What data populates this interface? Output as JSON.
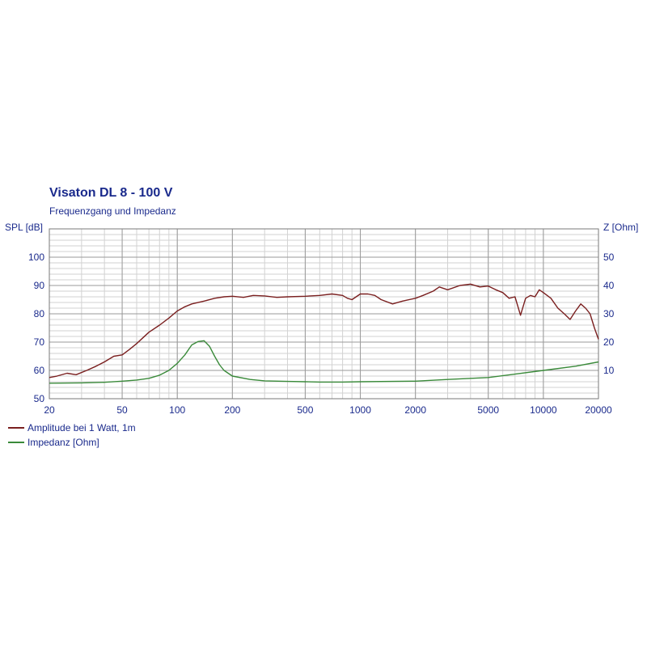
{
  "chart_data": {
    "type": "line",
    "title": "Visaton DL 8 - 100 V",
    "subtitle": "Frequenzgang und Impedanz",
    "ylabel_left": "SPL [dB]",
    "ylabel_right": "Z [Ohm]",
    "x_scale": "log",
    "xlim": [
      20,
      20000
    ],
    "ylim_left": [
      50,
      110
    ],
    "ylim_right": [
      0,
      60
    ],
    "x_ticks": [
      20,
      50,
      100,
      200,
      500,
      1000,
      2000,
      5000,
      10000,
      20000
    ],
    "y_ticks_left": [
      50,
      60,
      70,
      80,
      90,
      100
    ],
    "y_ticks_right": [
      10,
      20,
      30,
      40,
      50
    ],
    "grid": true,
    "legend_position": "bottom-left",
    "series": [
      {
        "name": "Amplitude bei 1 Watt, 1m",
        "axis": "left",
        "color": "#7a1f1f",
        "x": [
          20,
          22,
          25,
          28,
          32,
          36,
          40,
          45,
          50,
          55,
          60,
          70,
          80,
          90,
          100,
          110,
          120,
          140,
          160,
          180,
          200,
          230,
          260,
          300,
          350,
          400,
          500,
          600,
          700,
          800,
          850,
          900,
          1000,
          1100,
          1200,
          1300,
          1500,
          1700,
          2000,
          2200,
          2500,
          2700,
          3000,
          3500,
          4000,
          4500,
          5000,
          5500,
          6000,
          6500,
          7000,
          7500,
          8000,
          8500,
          9000,
          9500,
          10000,
          11000,
          12000,
          13000,
          14000,
          15000,
          16000,
          17000,
          18000,
          19000,
          20000
        ],
        "y": [
          57.5,
          58,
          59,
          58.5,
          60,
          61.5,
          63,
          65,
          65.5,
          67.5,
          69.5,
          73.5,
          76,
          78.5,
          81,
          82.5,
          83.5,
          84.5,
          85.5,
          86,
          86.2,
          85.8,
          86.5,
          86.3,
          85.8,
          86,
          86.2,
          86.5,
          87,
          86.5,
          85.5,
          85,
          87,
          87,
          86.5,
          85,
          83.5,
          84.5,
          85.5,
          86.5,
          88,
          89.5,
          88.5,
          90,
          90.5,
          89.5,
          89.8,
          88.5,
          87.5,
          85.5,
          86,
          79.5,
          85.5,
          86.5,
          86,
          88.5,
          87.5,
          85.5,
          82,
          80,
          78,
          81,
          83.5,
          82,
          80,
          75,
          71
        ]
      },
      {
        "name": "Impedanz [Ohm]",
        "axis": "right",
        "color": "#3a8a3a",
        "x": [
          20,
          30,
          40,
          50,
          60,
          70,
          80,
          90,
          100,
          110,
          120,
          130,
          140,
          150,
          160,
          170,
          180,
          200,
          250,
          300,
          400,
          500,
          600,
          800,
          1000,
          2000,
          3000,
          5000,
          7000,
          10000,
          15000,
          20000
        ],
        "y": [
          5.5,
          5.6,
          5.8,
          6.2,
          6.6,
          7.2,
          8.3,
          10,
          12.5,
          15.5,
          19,
          20.2,
          20.5,
          18.5,
          15,
          12,
          10,
          8,
          6.8,
          6.3,
          6.1,
          6.0,
          5.9,
          5.9,
          6.0,
          6.2,
          6.8,
          7.5,
          8.7,
          10,
          11.5,
          13
        ]
      }
    ]
  }
}
